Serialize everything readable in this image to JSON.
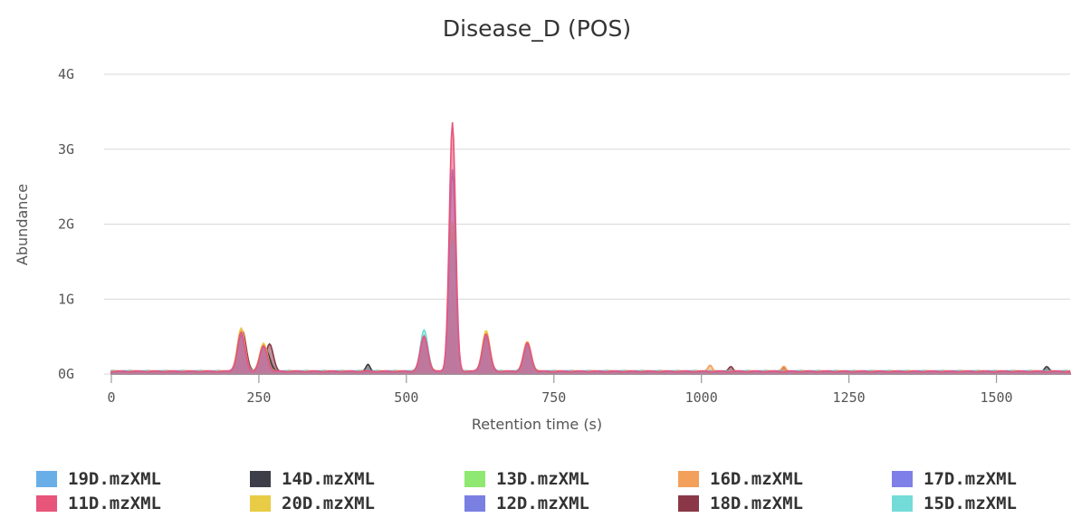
{
  "chart_data": {
    "type": "area",
    "title": "Disease_D (POS)",
    "xlabel": "Retention time (s)",
    "ylabel": "Abundance",
    "xlim": [
      0,
      1625
    ],
    "ylim": [
      0,
      4000000000
    ],
    "x_ticks": [
      0,
      250,
      500,
      750,
      1000,
      1250,
      1500
    ],
    "y_ticks": [
      {
        "value": 0,
        "label": "0G"
      },
      {
        "value": 1000000000,
        "label": "1G"
      },
      {
        "value": 2000000000,
        "label": "2G"
      },
      {
        "value": 3000000000,
        "label": "3G"
      },
      {
        "value": 4000000000,
        "label": "4G"
      }
    ],
    "grid": "horizontal",
    "legend_position": "bottom",
    "series": [
      {
        "name": "19D.mzXML",
        "color": "#6aaee8",
        "peaks": [
          [
            220,
            0.45
          ],
          [
            258,
            0.3
          ],
          [
            530,
            0.45
          ],
          [
            578,
            1.05
          ],
          [
            635,
            0.42
          ],
          [
            705,
            0.32
          ]
        ]
      },
      {
        "name": "14D.mzXML",
        "color": "#3e3e48",
        "peaks": [
          [
            222,
            0.4
          ],
          [
            262,
            0.28
          ],
          [
            530,
            0.3
          ],
          [
            578,
            0.58
          ],
          [
            635,
            0.32
          ],
          [
            705,
            0.3
          ],
          [
            435,
            0.1
          ],
          [
            1585,
            0.06
          ]
        ]
      },
      {
        "name": "13D.mzXML",
        "color": "#8ee872",
        "peaks": [
          [
            220,
            0.45
          ],
          [
            258,
            0.3
          ],
          [
            530,
            0.48
          ],
          [
            578,
            1.6
          ],
          [
            635,
            0.48
          ],
          [
            705,
            0.36
          ]
        ]
      },
      {
        "name": "16D.mzXML",
        "color": "#f2a05c",
        "peaks": [
          [
            220,
            0.58
          ],
          [
            258,
            0.36
          ],
          [
            530,
            0.45
          ],
          [
            578,
            1.85
          ],
          [
            635,
            0.52
          ],
          [
            705,
            0.38
          ],
          [
            1015,
            0.08
          ],
          [
            1140,
            0.07
          ]
        ]
      },
      {
        "name": "17D.mzXML",
        "color": "#7f7fe8",
        "peaks": [
          [
            220,
            0.48
          ],
          [
            258,
            0.32
          ],
          [
            530,
            0.46
          ],
          [
            578,
            2.7
          ],
          [
            635,
            0.47
          ],
          [
            705,
            0.36
          ]
        ]
      },
      {
        "name": "11D.mzXML",
        "color": "#e8557a",
        "peaks": [
          [
            220,
            0.52
          ],
          [
            258,
            0.34
          ],
          [
            530,
            0.47
          ],
          [
            578,
            3.32
          ],
          [
            635,
            0.5
          ],
          [
            705,
            0.38
          ]
        ]
      },
      {
        "name": "20D.mzXML",
        "color": "#e8cc45",
        "peaks": [
          [
            220,
            0.56
          ],
          [
            258,
            0.38
          ],
          [
            530,
            0.46
          ],
          [
            578,
            2.0
          ],
          [
            635,
            0.54
          ],
          [
            705,
            0.4
          ]
        ]
      },
      {
        "name": "12D.mzXML",
        "color": "#7a80e2",
        "peaks": [
          [
            220,
            0.46
          ],
          [
            258,
            0.31
          ],
          [
            530,
            0.45
          ],
          [
            578,
            1.1
          ],
          [
            635,
            0.44
          ],
          [
            705,
            0.33
          ]
        ]
      },
      {
        "name": "18D.mzXML",
        "color": "#8a3848",
        "peaks": [
          [
            222,
            0.55
          ],
          [
            268,
            0.36
          ],
          [
            530,
            0.32
          ],
          [
            578,
            0.6
          ],
          [
            635,
            0.35
          ],
          [
            705,
            0.28
          ],
          [
            1050,
            0.06
          ],
          [
            1140,
            0.05
          ]
        ]
      },
      {
        "name": "15D.mzXML",
        "color": "#74dcd8",
        "peaks": [
          [
            220,
            0.47
          ],
          [
            258,
            0.31
          ],
          [
            530,
            0.55
          ],
          [
            578,
            1.75
          ],
          [
            635,
            0.46
          ],
          [
            705,
            0.37
          ]
        ]
      }
    ]
  }
}
